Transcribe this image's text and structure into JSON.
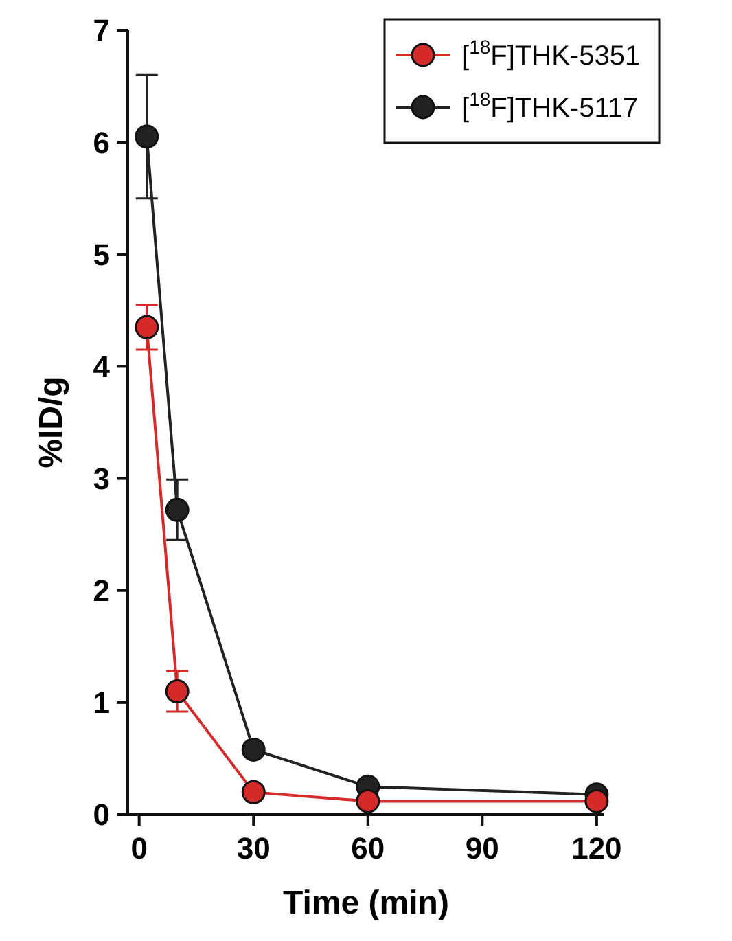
{
  "chart_data": {
    "type": "line",
    "xlabel": "Time (min)",
    "ylabel": "%ID/g",
    "x": [
      2,
      10,
      30,
      60,
      120
    ],
    "series": [
      {
        "name": "[$^{18}$F]THK-5351",
        "color": "#d42a2a",
        "values": [
          4.35,
          1.1,
          0.2,
          0.12,
          0.12
        ],
        "errors": [
          0.2,
          0.18,
          null,
          null,
          null
        ]
      },
      {
        "name": "[$^{18}$F]THK-5117",
        "color": "#222222",
        "values": [
          6.05,
          2.72,
          0.58,
          0.25,
          0.18
        ],
        "errors": [
          0.55,
          0.27,
          null,
          null,
          null
        ]
      }
    ],
    "xlim": [
      -3,
      122
    ],
    "xticks": [
      0,
      30,
      60,
      90,
      120
    ],
    "ylim": [
      0,
      7
    ],
    "yticks": [
      0,
      1,
      2,
      3,
      4,
      5,
      6,
      7
    ],
    "legend": "top right",
    "marker": "circle",
    "line_style": "solid",
    "grid": false
  }
}
